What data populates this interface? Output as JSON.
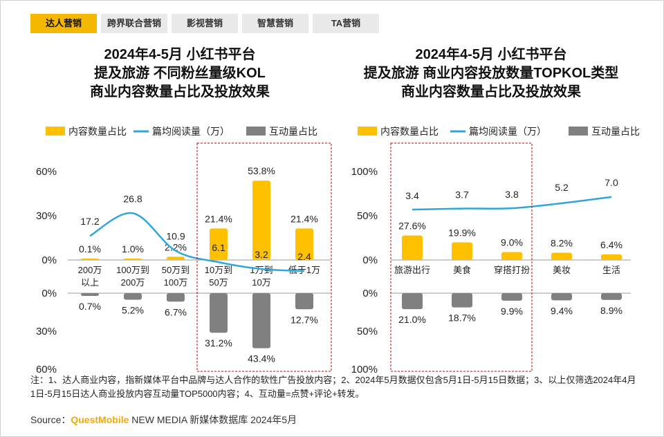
{
  "tabs": [
    "达人营销",
    "跨界联合营销",
    "影视营销",
    "智慧营销",
    "TA营销"
  ],
  "active_tab": 0,
  "colors": {
    "bar": "#FFC000",
    "line": "#2EA6D7",
    "gray": "#808080",
    "highlight": "#C00000"
  },
  "chart_data": [
    {
      "type": "bar",
      "title": [
        "2024年4-5月 小红书平台",
        "提及旅游 不同粉丝量级KOL",
        "商业内容数量占比及投放效果"
      ],
      "legend": [
        "内容数量占比",
        "篇均阅读量（万）",
        "互动量占比"
      ],
      "categories": [
        "200万以上",
        "100万到200万",
        "50万到100万",
        "10万到50万",
        "1万到10万",
        "低于1万"
      ],
      "category_lines": [
        [
          "200万",
          "以上"
        ],
        [
          "100万到",
          "200万"
        ],
        [
          "50万到",
          "100万"
        ],
        [
          "10万到",
          "50万"
        ],
        [
          "1万到",
          "10万"
        ],
        [
          "低于1万"
        ]
      ],
      "series": [
        {
          "name": "内容数量占比",
          "values": [
            0.1,
            1.0,
            2.2,
            21.4,
            53.8,
            21.4
          ],
          "labels": [
            "0.1%",
            "1.0%",
            "2.2%",
            "21.4%",
            "53.8%",
            "21.4%"
          ]
        },
        {
          "name": "篇均阅读量（万）",
          "values": [
            17.2,
            26.8,
            10.9,
            6.1,
            3.2,
            2.4
          ],
          "labels": [
            "17.2",
            "26.8",
            "10.9",
            "6.1",
            "3.2",
            "2.4"
          ]
        },
        {
          "name": "互动量占比",
          "values": [
            0.7,
            5.2,
            6.7,
            31.2,
            43.4,
            12.7
          ],
          "labels": [
            "0.7%",
            "5.2%",
            "6.7%",
            "31.2%",
            "43.4%",
            "12.7%"
          ]
        }
      ],
      "upper_ticks": [
        "0%",
        "30%",
        "60%"
      ],
      "lower_ticks": [
        "0%",
        "30%",
        "60%"
      ],
      "upper_max": 60,
      "lower_max": 60,
      "highlight": [
        3,
        5
      ]
    },
    {
      "type": "bar",
      "title": [
        "2024年4-5月 小红书平台",
        "提及旅游 商业内容投放数量TOPKOL类型",
        "商业内容数量占比及投放效果"
      ],
      "legend": [
        "内容数量占比",
        "篇均阅读量（万）",
        "互动量占比"
      ],
      "categories": [
        "旅游出行",
        "美食",
        "穿搭打扮",
        "美妆",
        "生活"
      ],
      "category_lines": [
        [
          "旅游出行"
        ],
        [
          "美食"
        ],
        [
          "穿搭打扮"
        ],
        [
          "美妆"
        ],
        [
          "生活"
        ]
      ],
      "series": [
        {
          "name": "内容数量占比",
          "values": [
            27.6,
            19.9,
            9.0,
            8.2,
            6.4
          ],
          "labels": [
            "27.6%",
            "19.9%",
            "9.0%",
            "8.2%",
            "6.4%"
          ]
        },
        {
          "name": "篇均阅读量（万）",
          "values": [
            3.4,
            3.7,
            3.8,
            5.2,
            7.0
          ],
          "labels": [
            "3.4",
            "3.7",
            "3.8",
            "5.2",
            "7.0"
          ]
        },
        {
          "name": "互动量占比",
          "values": [
            21.0,
            18.7,
            9.9,
            9.4,
            8.9
          ],
          "labels": [
            "21.0%",
            "18.7%",
            "9.9%",
            "9.4%",
            "8.9%"
          ]
        }
      ],
      "upper_ticks": [
        "0%",
        "50%",
        "100%"
      ],
      "lower_ticks": [
        "0%",
        "50%",
        "100%"
      ],
      "upper_max": 100,
      "lower_max": 100,
      "highlight": [
        0,
        2
      ]
    }
  ],
  "note": "注：1、达人商业内容，指新媒体平台中品牌与达人合作的软性广告投放内容；2、2024年5月数据仅包含5月1日-5月15日数据；3、以上仅筛选2024年4月1日-5月15日达人商业投放内容互动量TOP5000内容；4、互动量=点赞+评论+转发。",
  "source": {
    "label": "Source：",
    "brand": "QuestMobile",
    "rest": " NEW MEDIA 新媒体数据库 2024年5月"
  }
}
